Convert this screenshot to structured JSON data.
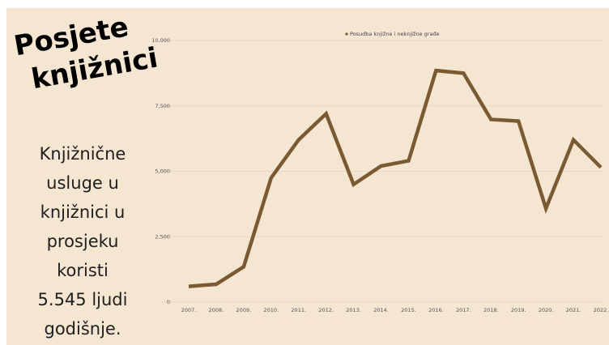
{
  "heading": {
    "line1": "Posjete",
    "line2": "knjižnici"
  },
  "description": [
    "Knjižnične",
    "usluge u",
    "knjižnici u",
    "prosjeku",
    "koristi",
    "5.545 ljudi",
    "godišnje."
  ],
  "colors": {
    "background": "#f5e6d2",
    "line": "#7a5a33",
    "grid": "#e6d4bd"
  },
  "chart_data": {
    "type": "line",
    "title": "",
    "xlabel": "",
    "ylabel": "",
    "legend": "top-center",
    "grid": true,
    "ylim": [
      0,
      10000
    ],
    "y_ticks": [
      "0",
      "2,500",
      "5,000",
      "7,500",
      "10,000"
    ],
    "categories": [
      "2007.",
      "2008.",
      "2009.",
      "2010.",
      "2011.",
      "2012.",
      "2013.",
      "2014.",
      "2015.",
      "2016.",
      "2017.",
      "2018.",
      "2019.",
      "2020.",
      "2021.",
      "2022."
    ],
    "series": [
      {
        "name": "Posudba knjižne i neknjižne građe",
        "values": [
          600,
          680,
          1350,
          4750,
          6200,
          7200,
          4500,
          5200,
          5400,
          8850,
          8750,
          6980,
          6920,
          3580,
          6200,
          5150
        ]
      }
    ]
  }
}
